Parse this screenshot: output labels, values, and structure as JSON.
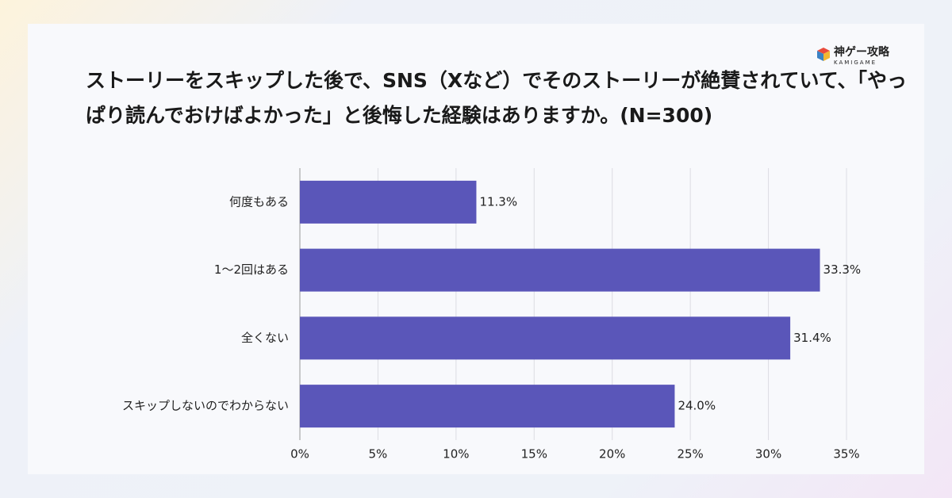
{
  "brand": {
    "name": "神ゲー攻略",
    "sub": "KAMIGAME"
  },
  "chart_data": {
    "type": "barh",
    "title": "ストーリーをスキップした後で、SNS（Xなど）でそのストーリーが絶賛されていて、「やっぱり読んでおけばよかった」と後悔した経験はありますか。(N=300)",
    "categories": [
      "何度もある",
      "1〜2回はある",
      "全くない",
      "スキップしないのでわからない"
    ],
    "values": [
      11.3,
      33.3,
      31.4,
      24.0
    ],
    "value_labels": [
      "11.3%",
      "33.3%",
      "31.4%",
      "24.0%"
    ],
    "color": "#5a56b9",
    "xlim": [
      0,
      35
    ],
    "xticks": [
      {
        "value": 0,
        "label": "0%"
      },
      {
        "value": 5,
        "label": "5%"
      },
      {
        "value": 10,
        "label": "10%"
      },
      {
        "value": 15,
        "label": "15%"
      },
      {
        "value": 20,
        "label": "20%"
      },
      {
        "value": 25,
        "label": "25%"
      },
      {
        "value": 30,
        "label": "30%"
      },
      {
        "value": 35,
        "label": "35%"
      }
    ],
    "grid": true
  }
}
